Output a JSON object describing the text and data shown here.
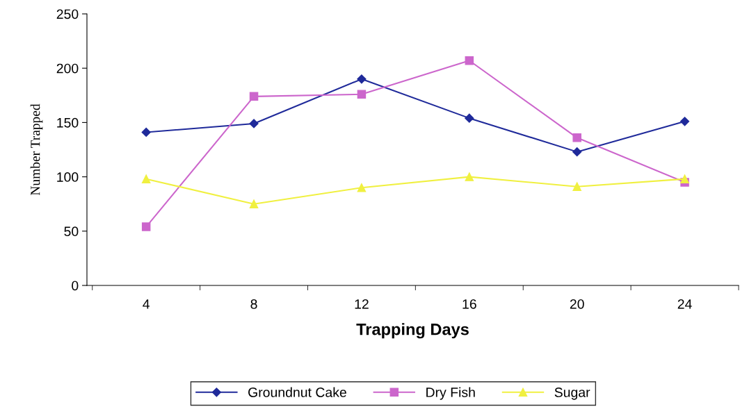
{
  "chart_data": {
    "type": "line",
    "xlabel": "Trapping Days",
    "ylabel": "Number Trapped",
    "categories": [
      "4",
      "8",
      "12",
      "16",
      "20",
      "24"
    ],
    "series": [
      {
        "name": "Groundnut Cake",
        "color": "#1f2a9a",
        "marker": "diamond",
        "values": [
          141,
          149,
          190,
          154,
          123,
          151
        ]
      },
      {
        "name": "Dry Fish",
        "color": "#cc66cc",
        "marker": "square",
        "values": [
          54,
          174,
          176,
          207,
          136,
          95
        ]
      },
      {
        "name": "Sugar",
        "color": "#f0f040",
        "marker": "triangle",
        "values": [
          98,
          75,
          90,
          100,
          91,
          98
        ]
      }
    ],
    "ylim": [
      0,
      250
    ],
    "yticks": [
      0,
      50,
      100,
      150,
      200,
      250
    ],
    "grid": false,
    "legend": "bottom",
    "line_style": "solid"
  }
}
